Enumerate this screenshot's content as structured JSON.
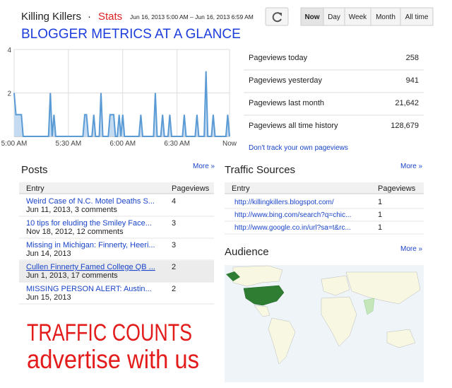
{
  "header": {
    "blog_title": "Killing Killers",
    "separator": "·",
    "section": "Stats",
    "date_range": "Jun 16, 2013 5:00 AM – Jun 16, 2013 6:59 AM"
  },
  "range_buttons": [
    "Now",
    "Day",
    "Week",
    "Month",
    "All time"
  ],
  "banner": "BLOGGER METRICS AT A GLANCE",
  "chart_data": {
    "type": "area",
    "color": "#5b9bd5",
    "fill": "#c5dbf1",
    "values": [
      2,
      1,
      1,
      1,
      1,
      0,
      0,
      0,
      0,
      0,
      0,
      0,
      0,
      0,
      0,
      0,
      0,
      0,
      0,
      0,
      2,
      0,
      1,
      0,
      0,
      0,
      0,
      0,
      0,
      0,
      0,
      0,
      0,
      0,
      0,
      0,
      0,
      0,
      0,
      1,
      1,
      0,
      0,
      0,
      1,
      0,
      0,
      0,
      2,
      0,
      0,
      0,
      0,
      1,
      1,
      1,
      0,
      0,
      1,
      0,
      1,
      0,
      0,
      0,
      0,
      0,
      0,
      0,
      0,
      0,
      1,
      0,
      0,
      0,
      0,
      0,
      0,
      0,
      2,
      0,
      0,
      0,
      1,
      0,
      0,
      0,
      1,
      0,
      0,
      0,
      0,
      0,
      0,
      0,
      1,
      0,
      0,
      0,
      0,
      0,
      0,
      1,
      0,
      0,
      0,
      0,
      3,
      0,
      0,
      0,
      1,
      0,
      0,
      0,
      0,
      0,
      0,
      0,
      1,
      0
    ],
    "xlim": [
      0,
      119
    ],
    "xticks": [
      {
        "value": 0,
        "label": "5:00 AM"
      },
      {
        "value": 30,
        "label": "5:30 AM"
      },
      {
        "value": 60,
        "label": "6:00 AM"
      },
      {
        "value": 90,
        "label": "6:30 AM"
      },
      {
        "value": 119,
        "label": "Now"
      }
    ],
    "ylim": [
      0,
      4
    ],
    "yticks": [
      2,
      4
    ],
    "grid": true
  },
  "summary": {
    "rows": [
      {
        "label": "Pageviews today",
        "value": "258"
      },
      {
        "label": "Pageviews yesterday",
        "value": "941"
      },
      {
        "label": "Pageviews last month",
        "value": "21,642"
      },
      {
        "label": "Pageviews all time history",
        "value": "128,679"
      }
    ],
    "link": "Don't track your own pageviews"
  },
  "posts": {
    "title": "Posts",
    "more": "More »",
    "columns": [
      "Entry",
      "Pageviews"
    ],
    "rows": [
      {
        "title": "Weird Case of N.C. Motel Deaths S...",
        "meta": "Jun 11, 2013, 3 comments",
        "pageviews": 4
      },
      {
        "title": "10 tips for eluding the Smiley Face...",
        "meta": "Nov 18, 2012, 12 comments",
        "pageviews": 3
      },
      {
        "title": "Missing in Michigan: Finnerty, Heeri...",
        "meta": "Jun 14, 2013",
        "pageviews": 3
      },
      {
        "title": "Cullen Finnerty Famed College QB ...",
        "meta": "Jun 1, 2013, 17 comments",
        "pageviews": 2
      },
      {
        "title": "MISSING PERSON ALERT: Austin...",
        "meta": "Jun 15, 2013",
        "pageviews": 2
      }
    ]
  },
  "traffic_sources": {
    "title": "Traffic Sources",
    "more": "More »",
    "columns": [
      "Entry",
      "Pageviews"
    ],
    "rows": [
      {
        "url": "http://killingkillers.blogspot.com/",
        "pageviews": 1
      },
      {
        "url": "http://www.bing.com/search?q=chic...",
        "pageviews": 1
      },
      {
        "url": "http://www.google.co.in/url?sa=t&rc...",
        "pageviews": 1
      }
    ]
  },
  "audience": {
    "title": "Audience",
    "more": "More »"
  },
  "promo": [
    "TRAFFIC COUNTS",
    "advertise with us"
  ]
}
